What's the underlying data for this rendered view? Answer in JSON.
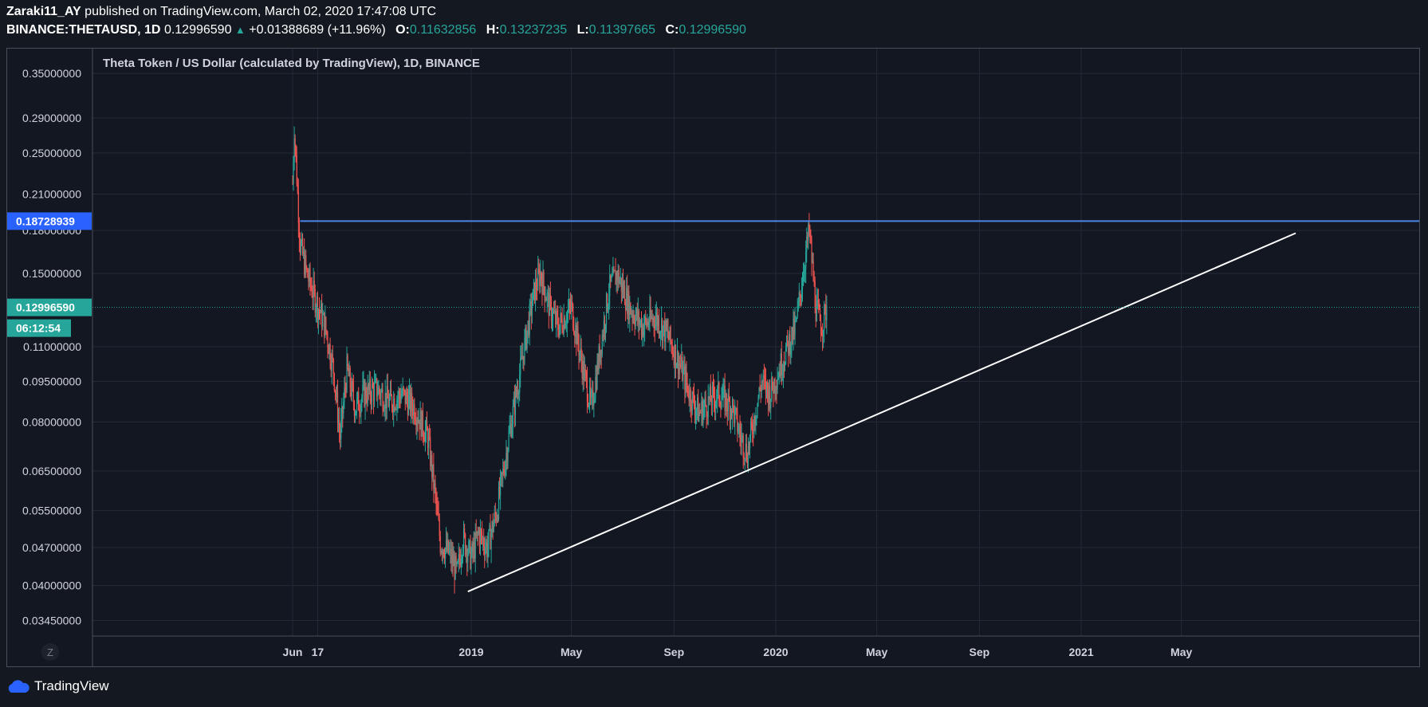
{
  "header": {
    "author": "Zaraki11_AY",
    "published": "published on TradingView.com, March 02, 2020 17:47:08 UTC",
    "symbol": "BINANCE:THETAUSD, 1D",
    "last": "0.12996590",
    "change": "+0.01388689 (+11.96%)",
    "o_label": "O:",
    "o_val": "0.11632856",
    "h_label": "H:",
    "h_val": "0.13237235",
    "l_label": "L:",
    "l_val": "0.11397665",
    "c_label": "C:",
    "c_val": "0.12996590"
  },
  "chart_data": {
    "type": "candlestick",
    "title": "Theta Token / US Dollar (calculated by TradingView), 1D, BINANCE",
    "y_scale": "log",
    "ylim": [
      0.0323,
      0.385
    ],
    "y_ticks": [
      "0.35000000",
      "0.29000000",
      "0.25000000",
      "0.21000000",
      "0.18000000",
      "0.15000000",
      "0.11000000",
      "0.09500000",
      "0.08000000",
      "0.06500000",
      "0.05500000",
      "0.04700000",
      "0.04000000",
      "0.03450000"
    ],
    "x_ticks": [
      "Jun",
      "17",
      "2019",
      "May",
      "Sep",
      "2020",
      "May",
      "Sep",
      "2021",
      "May"
    ],
    "price_labels": [
      {
        "text": "0.18728939",
        "color": "#2962ff"
      },
      {
        "text": "0.12996590",
        "color": "#26a69a"
      },
      {
        "text": "06:12:54",
        "color": "#26a69a"
      }
    ],
    "up_color": "#26a69a",
    "down_color": "#ef5350",
    "series_points": [
      {
        "date": "2018-06-01",
        "close": 0.22
      },
      {
        "date": "2018-06-03",
        "close": 0.28
      },
      {
        "date": "2018-06-10",
        "close": 0.17
      },
      {
        "date": "2018-06-18",
        "close": 0.15
      },
      {
        "date": "2018-06-28",
        "close": 0.135
      },
      {
        "date": "2018-07-10",
        "close": 0.12
      },
      {
        "date": "2018-07-20",
        "close": 0.1
      },
      {
        "date": "2018-07-28",
        "close": 0.075
      },
      {
        "date": "2018-08-05",
        "close": 0.1
      },
      {
        "date": "2018-08-15",
        "close": 0.085
      },
      {
        "date": "2018-08-25",
        "close": 0.09
      },
      {
        "date": "2018-09-10",
        "close": 0.092
      },
      {
        "date": "2018-09-25",
        "close": 0.087
      },
      {
        "date": "2018-10-10",
        "close": 0.09
      },
      {
        "date": "2018-10-25",
        "close": 0.085
      },
      {
        "date": "2018-11-10",
        "close": 0.075
      },
      {
        "date": "2018-11-18",
        "close": 0.06
      },
      {
        "date": "2018-11-25",
        "close": 0.048
      },
      {
        "date": "2018-12-05",
        "close": 0.046
      },
      {
        "date": "2018-12-15",
        "close": 0.042
      },
      {
        "date": "2018-12-22",
        "close": 0.049
      },
      {
        "date": "2019-01-01",
        "close": 0.045
      },
      {
        "date": "2019-01-10",
        "close": 0.05
      },
      {
        "date": "2019-01-20",
        "close": 0.047
      },
      {
        "date": "2019-02-01",
        "close": 0.055
      },
      {
        "date": "2019-02-15",
        "close": 0.075
      },
      {
        "date": "2019-03-01",
        "close": 0.1
      },
      {
        "date": "2019-03-10",
        "close": 0.12
      },
      {
        "date": "2019-03-18",
        "close": 0.14
      },
      {
        "date": "2019-03-25",
        "close": 0.15
      },
      {
        "date": "2019-04-05",
        "close": 0.13
      },
      {
        "date": "2019-04-15",
        "close": 0.12
      },
      {
        "date": "2019-05-01",
        "close": 0.13
      },
      {
        "date": "2019-05-15",
        "close": 0.1
      },
      {
        "date": "2019-05-25",
        "close": 0.085
      },
      {
        "date": "2019-06-05",
        "close": 0.11
      },
      {
        "date": "2019-06-15",
        "close": 0.14
      },
      {
        "date": "2019-06-25",
        "close": 0.15
      },
      {
        "date": "2019-07-10",
        "close": 0.13
      },
      {
        "date": "2019-07-25",
        "close": 0.12
      },
      {
        "date": "2019-08-10",
        "close": 0.125
      },
      {
        "date": "2019-08-25",
        "close": 0.115
      },
      {
        "date": "2019-09-10",
        "close": 0.1
      },
      {
        "date": "2019-09-20",
        "close": 0.09
      },
      {
        "date": "2019-10-01",
        "close": 0.083
      },
      {
        "date": "2019-10-15",
        "close": 0.088
      },
      {
        "date": "2019-10-25",
        "close": 0.09
      },
      {
        "date": "2019-11-10",
        "close": 0.085
      },
      {
        "date": "2019-11-20",
        "close": 0.075
      },
      {
        "date": "2019-11-28",
        "close": 0.07
      },
      {
        "date": "2019-12-05",
        "close": 0.08
      },
      {
        "date": "2019-12-15",
        "close": 0.095
      },
      {
        "date": "2019-12-25",
        "close": 0.09
      },
      {
        "date": "2020-01-05",
        "close": 0.1
      },
      {
        "date": "2020-01-15",
        "close": 0.11
      },
      {
        "date": "2020-01-25",
        "close": 0.12
      },
      {
        "date": "2020-02-05",
        "close": 0.16
      },
      {
        "date": "2020-02-10",
        "close": 0.18
      },
      {
        "date": "2020-02-18",
        "close": 0.13
      },
      {
        "date": "2020-02-25",
        "close": 0.12
      },
      {
        "date": "2020-03-02",
        "close": 0.13
      }
    ],
    "resistance_line": {
      "price": 0.18728939
    },
    "trend_line": {
      "start": {
        "date": "2018-12-28",
        "price": 0.039
      },
      "end": {
        "date": "2021-09-15",
        "price": 0.178
      }
    }
  },
  "footer": {
    "watermark": "Z",
    "brand": "TradingView"
  }
}
